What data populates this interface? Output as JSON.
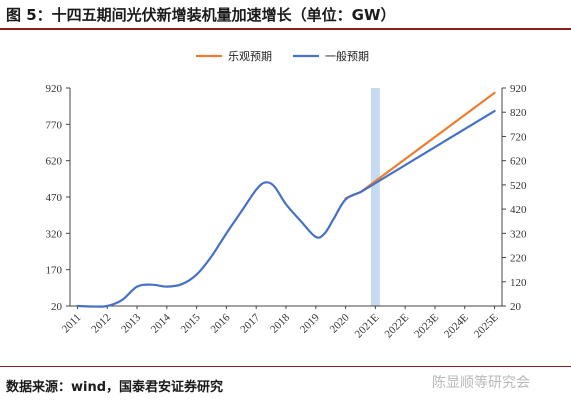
{
  "title": "图 5：十四五期间光伏新增装机量加速增长（单位：GW）",
  "source": "数据来源：wind，国泰君安证券研究",
  "watermark": "陈显顺等研究会",
  "chart_data": {
    "type": "line",
    "x": [
      "2011",
      "2012",
      "2013",
      "2014",
      "2015",
      "2016",
      "2017",
      "2018",
      "2019",
      "2020",
      "2021E",
      "2022E",
      "2023E",
      "2024E",
      "2025E"
    ],
    "highlight_category": "2021E",
    "ylim_left": [
      20,
      920
    ],
    "yticks_left": [
      20,
      170,
      320,
      470,
      620,
      770,
      920
    ],
    "ylim_right": [
      20,
      920
    ],
    "yticks_right": [
      20,
      120,
      220,
      320,
      420,
      520,
      620,
      720,
      820,
      920
    ],
    "series": [
      {
        "name": "乐观预期",
        "color": "#ed7d31",
        "points": [
          [
            2020.0,
            465
          ],
          [
            2020.5,
            490
          ],
          [
            2025.0,
            900
          ]
        ]
      },
      {
        "name": "一般预期",
        "color": "#4472c4",
        "points": [
          [
            2011.0,
            20
          ],
          [
            2011.5,
            18
          ],
          [
            2012.0,
            20
          ],
          [
            2012.5,
            45
          ],
          [
            2013.0,
            100
          ],
          [
            2013.5,
            108
          ],
          [
            2014.0,
            100
          ],
          [
            2014.5,
            110
          ],
          [
            2015.0,
            150
          ],
          [
            2015.5,
            225
          ],
          [
            2016.0,
            320
          ],
          [
            2016.5,
            410
          ],
          [
            2017.0,
            500
          ],
          [
            2017.3,
            530
          ],
          [
            2017.6,
            515
          ],
          [
            2018.0,
            440
          ],
          [
            2018.5,
            370
          ],
          [
            2019.0,
            305
          ],
          [
            2019.3,
            320
          ],
          [
            2019.6,
            380
          ],
          [
            2020.0,
            460
          ],
          [
            2020.5,
            490
          ],
          [
            2025.0,
            825
          ]
        ]
      }
    ],
    "legend_position": "top-right",
    "grid": false
  }
}
